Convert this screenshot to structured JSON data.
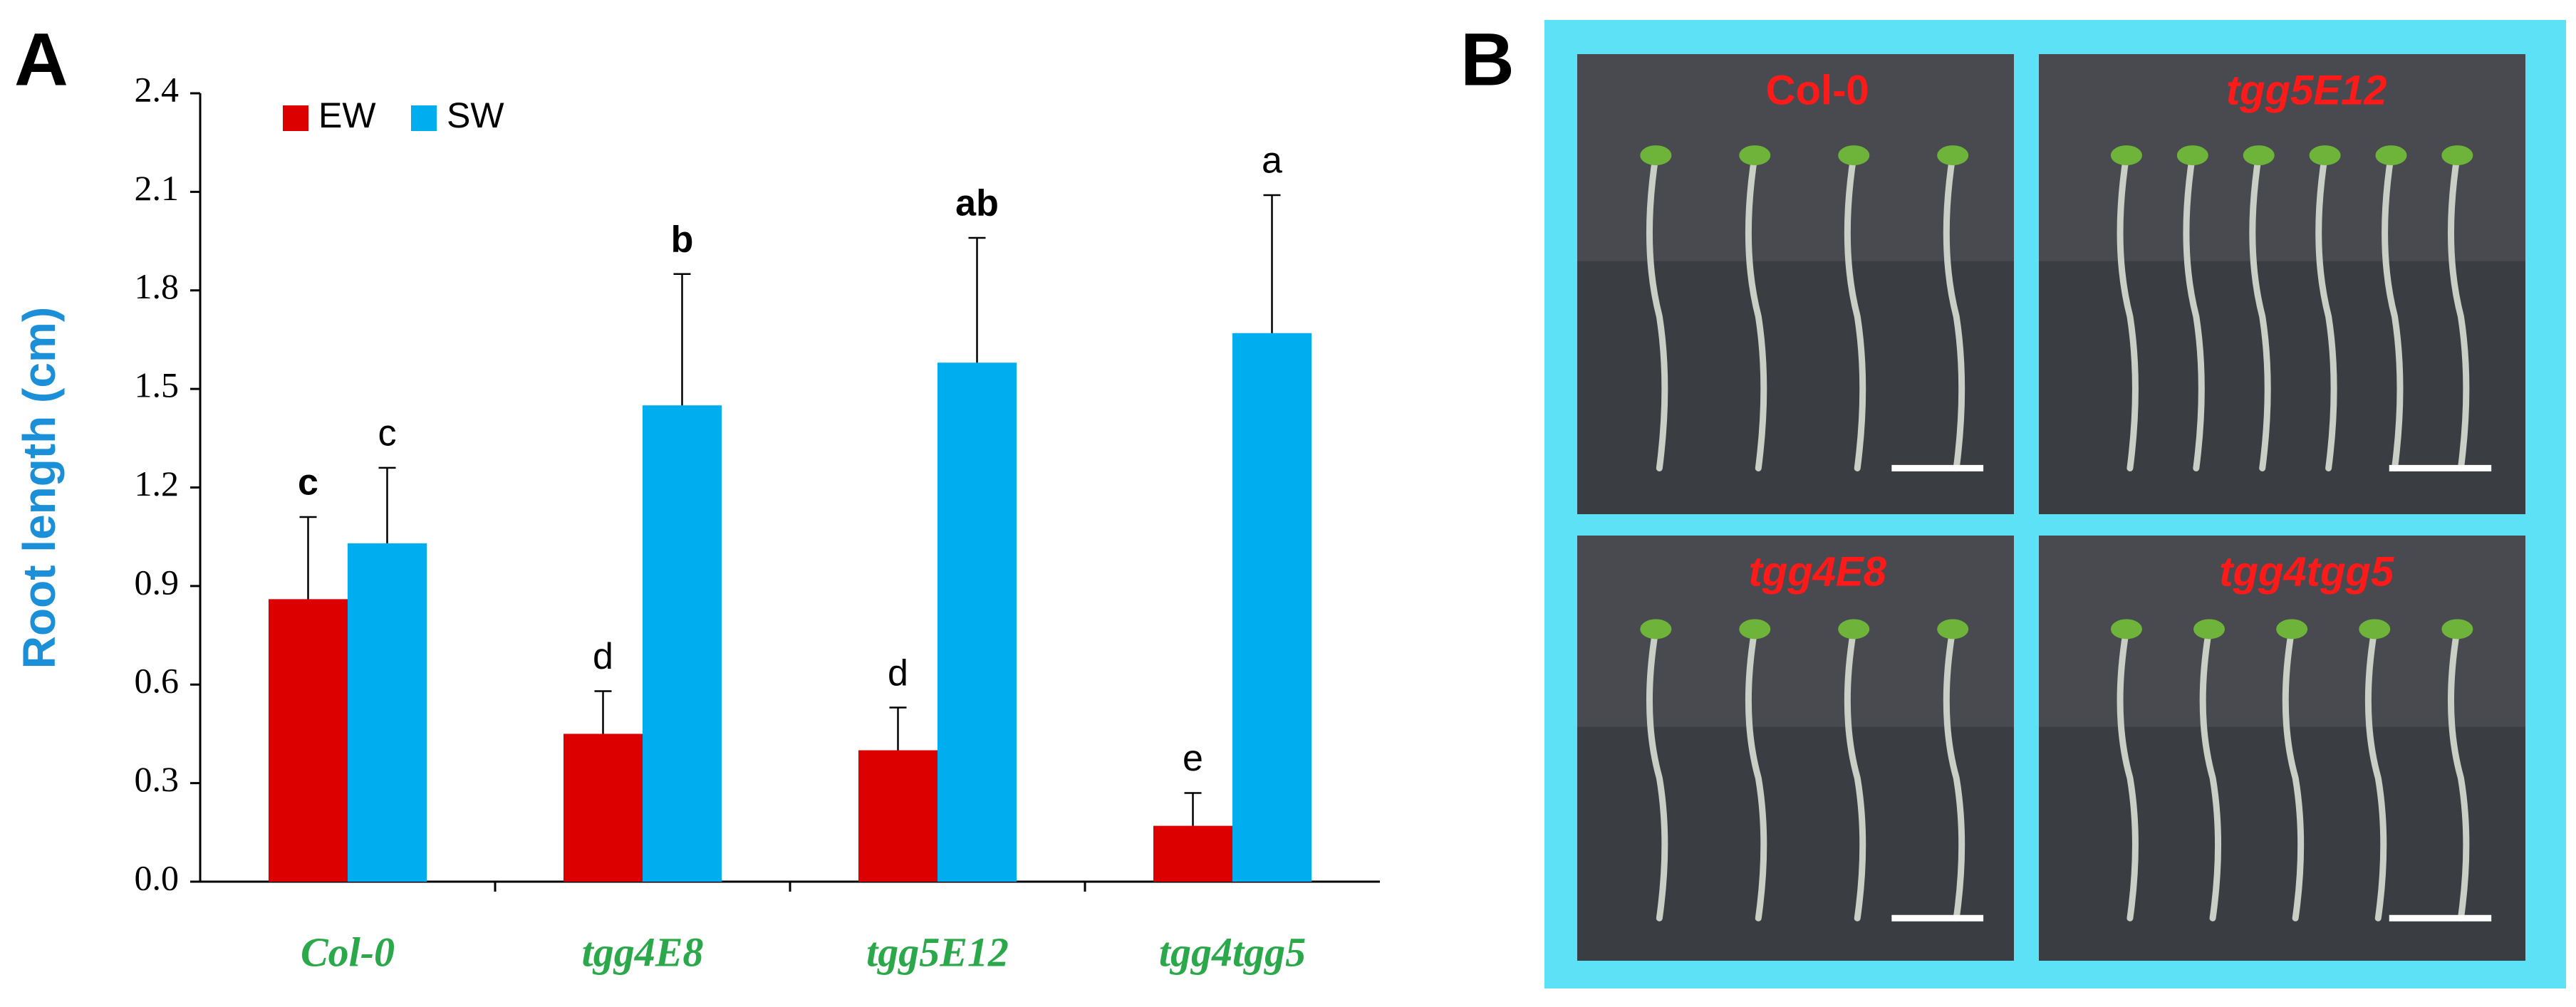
{
  "panel_labels": [
    "A",
    "B"
  ],
  "chart_data": {
    "type": "bar",
    "y_label": "Root length (cm)",
    "categories": [
      "Col-0",
      "tgg4E8",
      "tgg5E12",
      "tgg4tgg5"
    ],
    "series": [
      {
        "name": "EW",
        "color": "#dd0000",
        "values": [
          0.86,
          0.45,
          0.4,
          0.17
        ],
        "errors": [
          0.25,
          0.13,
          0.13,
          0.1
        ],
        "letters": [
          "c",
          "d",
          "d",
          "e"
        ]
      },
      {
        "name": "SW",
        "color": "#00aeef",
        "values": [
          1.03,
          1.45,
          1.58,
          1.67
        ],
        "errors": [
          0.23,
          0.4,
          0.38,
          0.42
        ],
        "letters": [
          "c",
          "b",
          "ab",
          "a"
        ]
      }
    ],
    "ylim": [
      0,
      2.4
    ],
    "yticks": [
      {
        "value": 0,
        "label": "0.0"
      },
      0.3,
      0.6,
      0.9,
      1.2,
      1.5,
      1.8,
      2.1,
      2.4
    ],
    "legend": "top-left"
  },
  "photo_panel": {
    "labels": [
      "Col-0",
      "tgg5E12",
      "tgg4E8",
      "tgg4tgg5"
    ]
  }
}
